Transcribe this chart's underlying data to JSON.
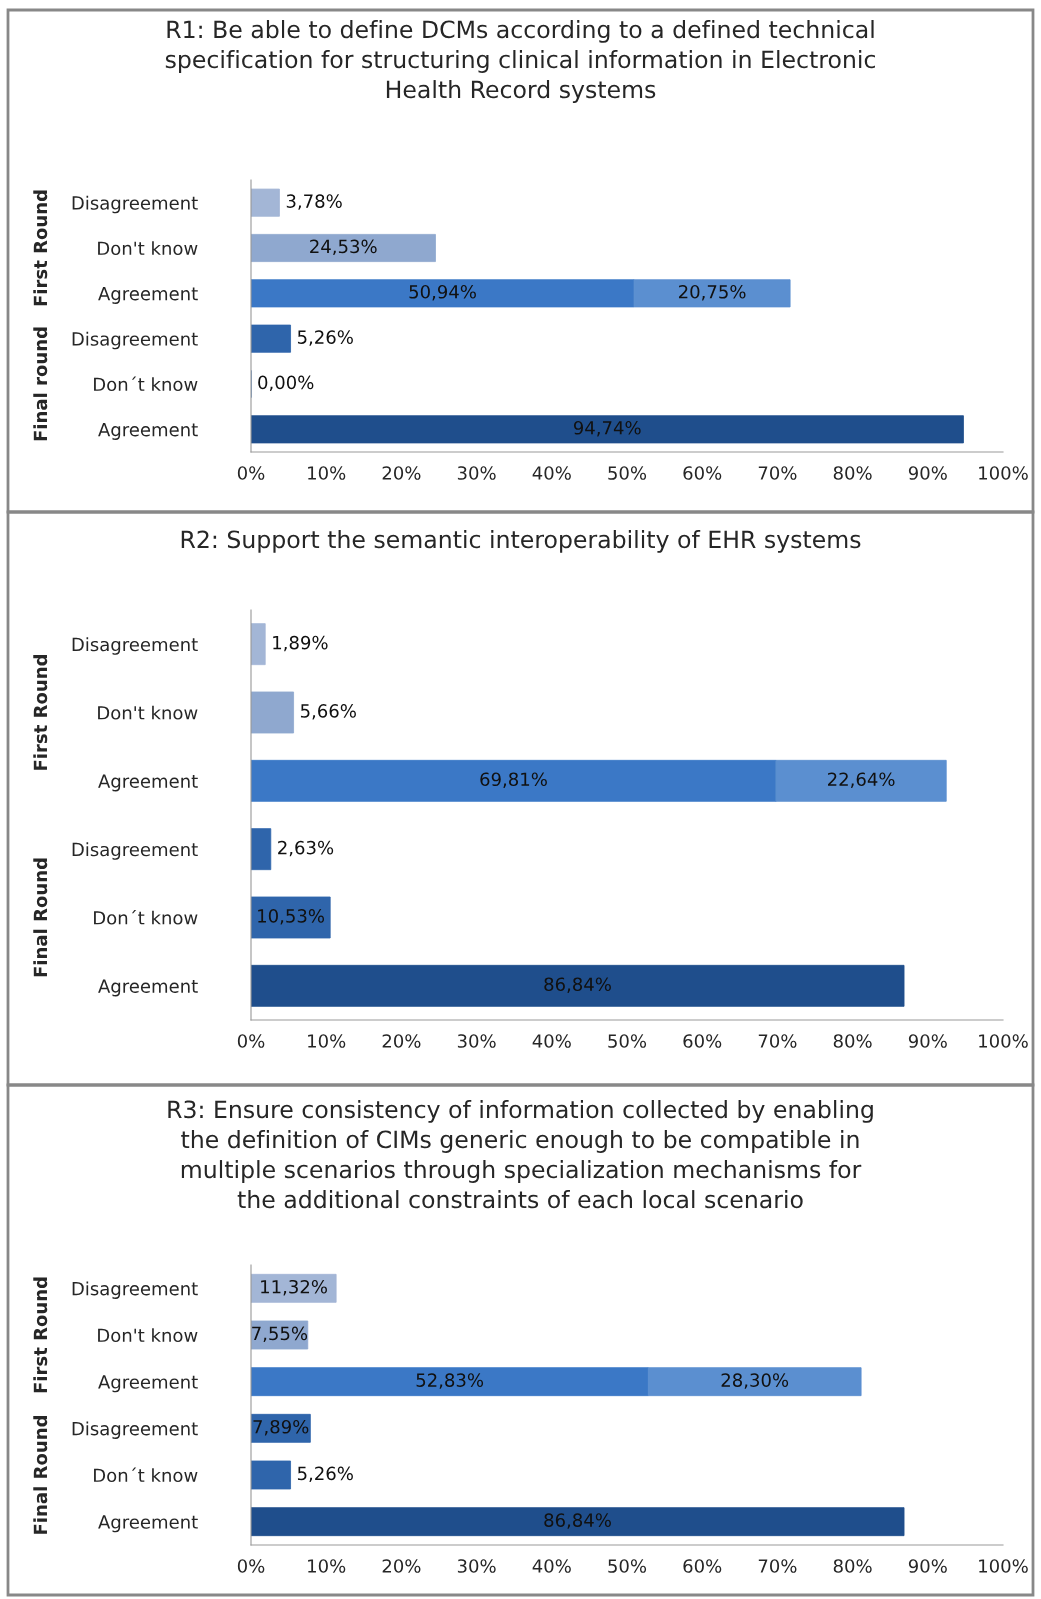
{
  "chart_data": [
    {
      "type": "bar",
      "orientation": "horizontal",
      "stacked": true,
      "title": "R1: Be able to define DCMs according to a defined technical\nspecification for structuring clinical information in Electronic\nHealth Record systems",
      "categories": [
        "Disagreement",
        "Don't know",
        "Agreement",
        "Disagreement",
        "Don´t know",
        "Agreement"
      ],
      "series": [
        {
          "values": [
            3.78,
            24.53,
            50.94,
            5.26,
            0.0,
            94.74
          ],
          "colors": [
            "#a3b6d6",
            "#8fa8cf",
            "#3b78c6",
            "#2f65ab",
            "#2f65ab",
            "#1f4e8c"
          ],
          "value_labels": [
            "3,78%",
            "24,53%",
            "50,94%",
            "5,26%",
            "0,00%",
            "94,74%"
          ]
        },
        {
          "values": [
            null,
            null,
            20.75,
            null,
            null,
            null
          ],
          "colors": [
            null,
            null,
            "#5b8fd0",
            null,
            null,
            null
          ],
          "value_labels": [
            null,
            null,
            "20,75%",
            null,
            null,
            null
          ]
        }
      ],
      "xlim": [
        0,
        100
      ],
      "xticks": [
        {
          "value": 0,
          "label": "0%"
        },
        {
          "value": 10,
          "label": "10%"
        },
        {
          "value": 20,
          "label": "20%"
        },
        {
          "value": 30,
          "label": "30%"
        },
        {
          "value": 40,
          "label": "40%"
        },
        {
          "value": 50,
          "label": "50%"
        },
        {
          "value": 60,
          "label": "60%"
        },
        {
          "value": 70,
          "label": "70%"
        },
        {
          "value": 80,
          "label": "80%"
        },
        {
          "value": 90,
          "label": "90%"
        },
        {
          "value": 100,
          "label": "100%"
        }
      ],
      "annotations": [
        "First Round",
        "Final round"
      ],
      "grid": false,
      "legend": false
    },
    {
      "type": "bar",
      "orientation": "horizontal",
      "stacked": true,
      "title": "R2: Support the semantic interoperability of EHR systems",
      "categories": [
        "Disagreement",
        "Don't know",
        "Agreement",
        "Disagreement",
        "Don´t know",
        "Agreement"
      ],
      "series": [
        {
          "values": [
            1.89,
            5.66,
            69.81,
            2.63,
            10.53,
            86.84
          ],
          "colors": [
            "#a3b6d6",
            "#8fa8cf",
            "#3b78c6",
            "#2f65ab",
            "#2f65ab",
            "#1f4e8c"
          ],
          "value_labels": [
            "1,89%",
            "5,66%",
            "69,81%",
            "2,63%",
            "10,53%",
            "86,84%"
          ]
        },
        {
          "values": [
            null,
            null,
            22.64,
            null,
            null,
            null
          ],
          "colors": [
            null,
            null,
            "#5b8fd0",
            null,
            null,
            null
          ],
          "value_labels": [
            null,
            null,
            "22,64%",
            null,
            null,
            null
          ]
        }
      ],
      "xlim": [
        0,
        100
      ],
      "xticks": [
        {
          "value": 0,
          "label": "0%"
        },
        {
          "value": 10,
          "label": "10%"
        },
        {
          "value": 20,
          "label": "20%"
        },
        {
          "value": 30,
          "label": "30%"
        },
        {
          "value": 40,
          "label": "40%"
        },
        {
          "value": 50,
          "label": "50%"
        },
        {
          "value": 60,
          "label": "60%"
        },
        {
          "value": 70,
          "label": "70%"
        },
        {
          "value": 80,
          "label": "80%"
        },
        {
          "value": 90,
          "label": "90%"
        },
        {
          "value": 100,
          "label": "100%"
        }
      ],
      "annotations": [
        "First Round",
        "Final Round"
      ],
      "grid": false,
      "legend": false
    },
    {
      "type": "bar",
      "orientation": "horizontal",
      "stacked": true,
      "title": "R3: Ensure consistency of information collected by enabling\nthe definition of CIMs generic enough to be compatible in\nmultiple scenarios through specialization mechanisms for\nthe additional constraints of each local scenario",
      "categories": [
        "Disagreement",
        "Don't know",
        "Agreement",
        "Disagreement",
        "Don´t know",
        "Agreement"
      ],
      "series": [
        {
          "values": [
            11.32,
            7.55,
            52.83,
            7.89,
            5.26,
            86.84
          ],
          "colors": [
            "#a3b6d6",
            "#8fa8cf",
            "#3b78c6",
            "#2f65ab",
            "#2f65ab",
            "#1f4e8c"
          ],
          "value_labels": [
            "11,32%",
            "7,55%",
            "52,83%",
            "7,89%",
            "5,26%",
            "86,84%"
          ]
        },
        {
          "values": [
            null,
            null,
            28.3,
            null,
            null,
            null
          ],
          "colors": [
            null,
            null,
            "#5b8fd0",
            null,
            null,
            null
          ],
          "value_labels": [
            null,
            null,
            "28,30%",
            null,
            null,
            null
          ]
        }
      ],
      "xlim": [
        0,
        100
      ],
      "xticks": [
        {
          "value": 0,
          "label": "0%"
        },
        {
          "value": 10,
          "label": "10%"
        },
        {
          "value": 20,
          "label": "20%"
        },
        {
          "value": 30,
          "label": "30%"
        },
        {
          "value": 40,
          "label": "40%"
        },
        {
          "value": 50,
          "label": "50%"
        },
        {
          "value": 60,
          "label": "60%"
        },
        {
          "value": 70,
          "label": "70%"
        },
        {
          "value": 80,
          "label": "80%"
        },
        {
          "value": 90,
          "label": "90%"
        },
        {
          "value": 100,
          "label": "100%"
        }
      ],
      "annotations": [
        "First Round",
        "Final Round"
      ],
      "grid": false,
      "legend": false
    }
  ]
}
